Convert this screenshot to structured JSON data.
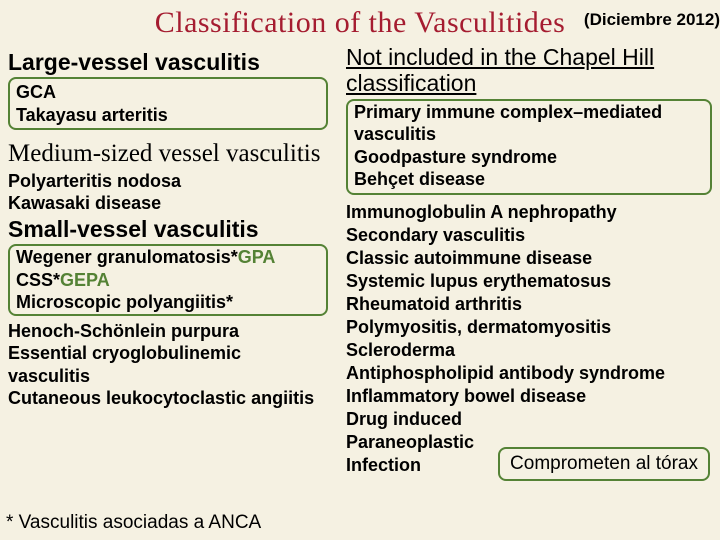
{
  "colors": {
    "bg": "#f5f1e2",
    "title": "#a51c30",
    "text": "#000000",
    "box_border": "#548235",
    "accent_green": "#548235"
  },
  "header": {
    "title": "Classification of the Vasculitides",
    "date": "(Diciembre 2012)"
  },
  "left": {
    "h_large": "Large-vessel vasculitis",
    "box_large_items": "GCA\nTakayasu arteritis",
    "h_medium": "Medium-sized vessel vasculitis",
    "medium_items": "Polyarteritis nodosa\nKawasaki disease",
    "h_small": "Small-vessel vasculitis",
    "small_box_lines": [
      {
        "pre": "Wegener granulomatosis*",
        "green": "GPA"
      },
      {
        "pre": "CSS*",
        "green": "GEPA"
      },
      {
        "pre": "Microscopic polyangiitis*",
        "green": ""
      }
    ],
    "small_rest": "Henoch-Schönlein purpura\nEssential cryoglobulinemic vasculitis\nCutaneous leukocytoclastic angiitis"
  },
  "right": {
    "heading": "Not included in the Chapel Hill classification",
    "box_items": "Primary immune complex–mediated vasculitis\nGoodpasture syndrome\nBehçet disease",
    "list_items": "Immunoglobulin A nephropathy\nSecondary vasculitis\nClassic autoimmune disease\nSystemic lupus erythematosus\nRheumatoid arthritis\nPolymyositis, dermatomyositis\nScleroderma\nAntiphospholipid antibody syndrome\nInflammatory bowel disease\nDrug induced\nParaneoplastic\nInfection",
    "callout": "Comprometen al tórax"
  },
  "footnote": "* Vasculitis  asociadas a ANCA"
}
